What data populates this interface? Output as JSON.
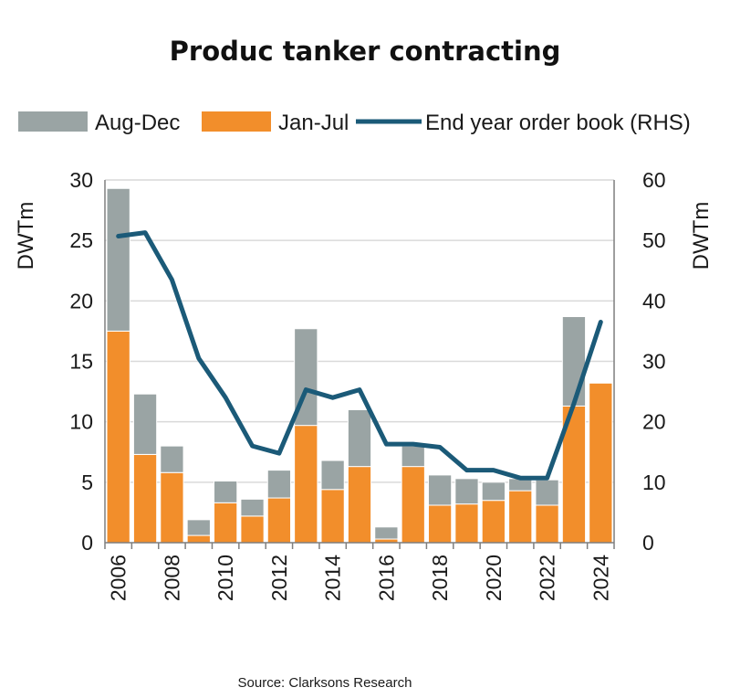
{
  "chart_data": {
    "type": "bar",
    "title": "Produc tanker contracting",
    "source": "Source: Clarksons Research",
    "categories": [
      "2006",
      "2007",
      "2008",
      "2009",
      "2010",
      "2011",
      "2012",
      "2013",
      "2014",
      "2015",
      "2016",
      "2017",
      "2018",
      "2019",
      "2020",
      "2021",
      "2022",
      "2023",
      "2024"
    ],
    "x_tick_labels": [
      "2006",
      "2008",
      "2010",
      "2012",
      "2014",
      "2016",
      "2018",
      "2020",
      "2022",
      "2024"
    ],
    "series": [
      {
        "name": "Jan-Jul",
        "kind": "bar",
        "stack_order": 0,
        "color": "#f28e2b",
        "values": [
          17.5,
          7.3,
          5.8,
          0.6,
          3.3,
          2.2,
          3.7,
          9.7,
          4.4,
          6.3,
          0.3,
          6.3,
          3.1,
          3.2,
          3.5,
          4.3,
          3.1,
          11.3,
          13.2
        ]
      },
      {
        "name": "Aug-Dec",
        "kind": "bar",
        "stack_order": 1,
        "color": "#9aa4a4",
        "values": [
          11.8,
          5.0,
          2.2,
          1.3,
          1.8,
          1.4,
          2.3,
          8.0,
          2.4,
          4.7,
          1.0,
          1.7,
          2.5,
          2.1,
          1.5,
          1.0,
          2.1,
          7.4,
          0.0
        ]
      },
      {
        "name": "End year order book (RHS)",
        "kind": "line",
        "axis": "right",
        "color": "#1b5a78",
        "values": [
          50.7,
          51.3,
          43.5,
          30.5,
          24.0,
          16.0,
          14.8,
          25.3,
          24.0,
          25.3,
          16.3,
          16.3,
          15.8,
          12.0,
          12.0,
          10.7,
          10.7,
          23.0,
          36.5
        ]
      }
    ],
    "legend": [
      "Aug-Dec",
      "Jan-Jul",
      "End year order book (RHS)"
    ],
    "legend_position": "top",
    "y_left": {
      "label": "DWTm",
      "min": 0,
      "max": 30,
      "ticks": [
        0,
        5,
        10,
        15,
        20,
        25,
        30
      ]
    },
    "y_right": {
      "label": "DWTm",
      "min": 0,
      "max": 60,
      "ticks": [
        0,
        10,
        20,
        30,
        40,
        50,
        60
      ]
    },
    "grid": true,
    "colors": {
      "grid": "#d9d9d9",
      "axis": "#7f7f7f",
      "bar_edge": "#ffffff"
    }
  }
}
